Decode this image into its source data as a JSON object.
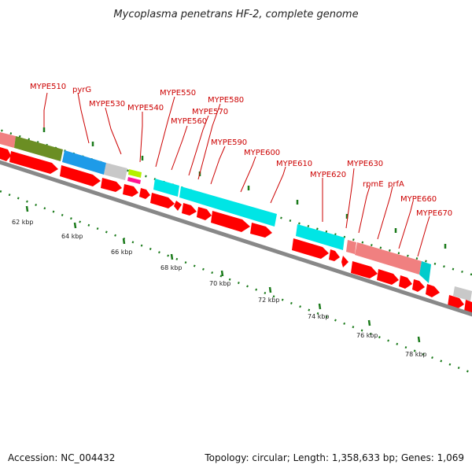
{
  "title": "Mycoplasma penetrans HF-2, complete genome",
  "footer": {
    "accession": "Accession: NC_004432",
    "summary": "Topology: circular; Length: 1,358,633 bp; Genes: 1,069"
  },
  "scale_labels": [
    {
      "text": "62 kbp",
      "kbp": 62
    },
    {
      "text": "64 kbp",
      "kbp": 64
    },
    {
      "text": "66 kbp",
      "kbp": 66
    },
    {
      "text": "68 kbp",
      "kbp": 68
    },
    {
      "text": "70 kbp",
      "kbp": 70
    },
    {
      "text": "72 kbp",
      "kbp": 72
    },
    {
      "text": "74 kbp",
      "kbp": 74
    },
    {
      "text": "76 kbp",
      "kbp": 76
    },
    {
      "text": "78 kbp",
      "kbp": 78
    }
  ],
  "gene_labels": [
    {
      "text": "MYPE510"
    },
    {
      "text": "pyrG"
    },
    {
      "text": "MYPE530"
    },
    {
      "text": "MYPE540"
    },
    {
      "text": "MYPE550"
    },
    {
      "text": "MYPE560"
    },
    {
      "text": "MYPE570"
    },
    {
      "text": "MYPE580"
    },
    {
      "text": "MYPE590"
    },
    {
      "text": "MYPE600"
    },
    {
      "text": "MYPE610"
    },
    {
      "text": "MYPE620"
    },
    {
      "text": "MYPE630"
    },
    {
      "text": "rpmE"
    },
    {
      "text": "prfA"
    },
    {
      "text": "MYPE660"
    },
    {
      "text": "MYPE670"
    }
  ],
  "colors": {
    "cds": "#ff0000",
    "label": "#cc0000",
    "backbone": "#888888",
    "tick": "#1a7a1a",
    "olive": "#6b8e23",
    "blue": "#1e9be8",
    "gray": "#c8c8c8",
    "yellow_green": "#b4f000",
    "magenta": "#ff1493",
    "cyan": "#00e5e5",
    "salmon": "#f08080",
    "teal": "#00cccc"
  }
}
